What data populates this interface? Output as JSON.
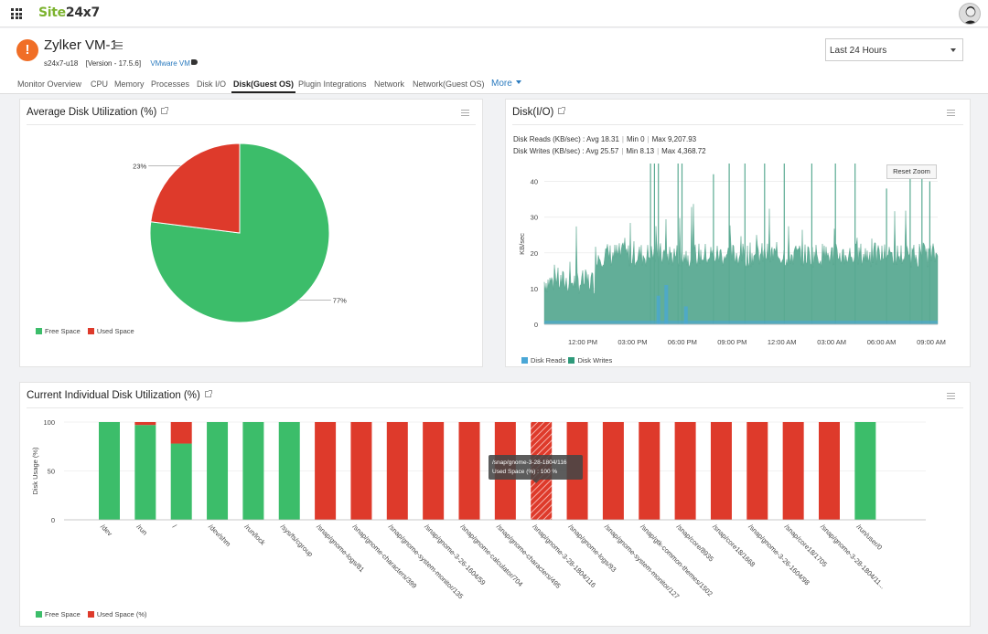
{
  "topbar": {
    "logo_part1": "Site",
    "logo_part2": "24x7"
  },
  "monitor": {
    "name": "Zylker VM-1",
    "host": "s24x7-u18",
    "version": "[Version - 17.5.6]",
    "type": "VMware VM"
  },
  "time_range": {
    "selected": "Last 24 Hours"
  },
  "tabs": [
    {
      "label": "Monitor Overview"
    },
    {
      "label": "CPU"
    },
    {
      "label": "Memory"
    },
    {
      "label": "Processes"
    },
    {
      "label": "Disk I/O"
    },
    {
      "label": "Disk(Guest OS)",
      "active": true
    },
    {
      "label": "Plugin Integrations"
    },
    {
      "label": "Network"
    },
    {
      "label": "Network(Guest OS)"
    },
    {
      "label": "More"
    }
  ],
  "colors": {
    "green": "#3cbd6a",
    "red": "#de3a2b",
    "teal": "#5aaa92",
    "blue": "#4aa7d6",
    "accent": "#2b7bbf",
    "alert": "#f06e26"
  },
  "avg_disk": {
    "title": "Average Disk Utilization (%)",
    "legend": [
      "Free Space",
      "Used Space"
    ]
  },
  "disk_io": {
    "title": "Disk(I/O)",
    "reads": {
      "label": "Disk Reads (KB/sec) :",
      "avg": "Avg 18.31",
      "min": "Min 0",
      "max": "Max 9,207.93"
    },
    "writes": {
      "label": "Disk Writes (KB/sec) :",
      "avg": "Avg 25.57",
      "min": "Min 8.13",
      "max": "Max 4,368.72"
    },
    "reset_zoom": "Reset Zoom",
    "legend": [
      "Disk Reads",
      "Disk Writes"
    ]
  },
  "individual": {
    "title": "Current Individual Disk Utilization (%)",
    "legend": [
      "Free Space",
      "Used Space (%)"
    ],
    "tooltip_line1": "/snap/gnome-3-28-1804/116",
    "tooltip_line2": "Used Space (%) : 100 %"
  },
  "chart_data": [
    {
      "type": "pie",
      "categories": [
        "Free Space",
        "Used Space"
      ],
      "values": [
        77,
        23
      ],
      "data_labels": [
        "77%",
        "23%"
      ],
      "legend": "bottom-left"
    },
    {
      "type": "area",
      "ylabel": "KB/sec",
      "ylim": [
        0,
        45
      ],
      "yticks": [
        "0",
        "10",
        "20",
        "30",
        "40"
      ],
      "xticks": [
        "12:00 PM",
        "03:00 PM",
        "06:00 PM",
        "09:00 PM",
        "12:00 AM",
        "03:00 AM",
        "06:00 AM",
        "09:00 AM"
      ],
      "series": [
        {
          "name": "Disk Reads",
          "baseline": 1,
          "spikes": [
            [
              0.29,
              8
            ],
            [
              0.31,
              11
            ],
            [
              0.36,
              5
            ]
          ]
        },
        {
          "name": "Disk Writes",
          "level_before": 10.5,
          "level_after": 18,
          "jump_at": 0.13,
          "noise": 7,
          "spikes": [
            [
              0.27,
              45
            ],
            [
              0.28,
              45
            ],
            [
              0.29,
              45
            ],
            [
              0.34,
              45
            ],
            [
              0.35,
              45
            ],
            [
              0.43,
              42
            ],
            [
              0.47,
              45
            ],
            [
              0.51,
              45
            ],
            [
              0.56,
              45
            ],
            [
              0.61,
              45
            ],
            [
              0.68,
              45
            ],
            [
              0.74,
              45
            ],
            [
              0.79,
              45
            ],
            [
              0.87,
              38
            ],
            [
              0.93,
              43
            ],
            [
              0.96,
              42
            ],
            [
              0.98,
              40
            ]
          ]
        }
      ],
      "legend": "bottom-left",
      "grid": true
    },
    {
      "type": "bar",
      "stacked": true,
      "ylabel": "Disk Usage (%)",
      "ylim": [
        0,
        100
      ],
      "yticks": [
        "0",
        "50",
        "100"
      ],
      "categories": [
        "/dev",
        "/run",
        "/",
        "/dev/shm",
        "/run/lock",
        "/sys/fs/cgroup",
        "/snap/gnome-logs/81",
        "/snap/gnome-characters/399",
        "/snap/gnome-system-monitor/135",
        "/snap/gnome-3-26-1604/59",
        "/snap/gnome-calculator/704",
        "/snap/gnome-characters/495",
        "/snap/gnome-3-28-1804/116",
        "/snap/gnome-logs/93",
        "/snap/gnome-system-monitor/127",
        "/snap/gtk-common-themes/1502",
        "/snap/core/8935",
        "/snap/core18/1668",
        "/snap/gnome-3-26-1604/98",
        "/snap/core18/1705",
        "/snap/gnome-3-28-1804/11...",
        "/run/user/0"
      ],
      "series": [
        {
          "name": "Used Space (%)",
          "values": [
            0,
            3,
            22,
            0,
            0,
            0,
            100,
            100,
            100,
            100,
            100,
            100,
            100,
            100,
            100,
            100,
            100,
            100,
            100,
            100,
            100,
            0
          ]
        },
        {
          "name": "Free Space",
          "values": [
            100,
            97,
            78,
            100,
            100,
            100,
            0,
            0,
            0,
            0,
            0,
            0,
            0,
            0,
            0,
            0,
            0,
            0,
            0,
            0,
            0,
            100
          ]
        }
      ],
      "highlighted_index": 12,
      "legend": "bottom-left"
    }
  ]
}
